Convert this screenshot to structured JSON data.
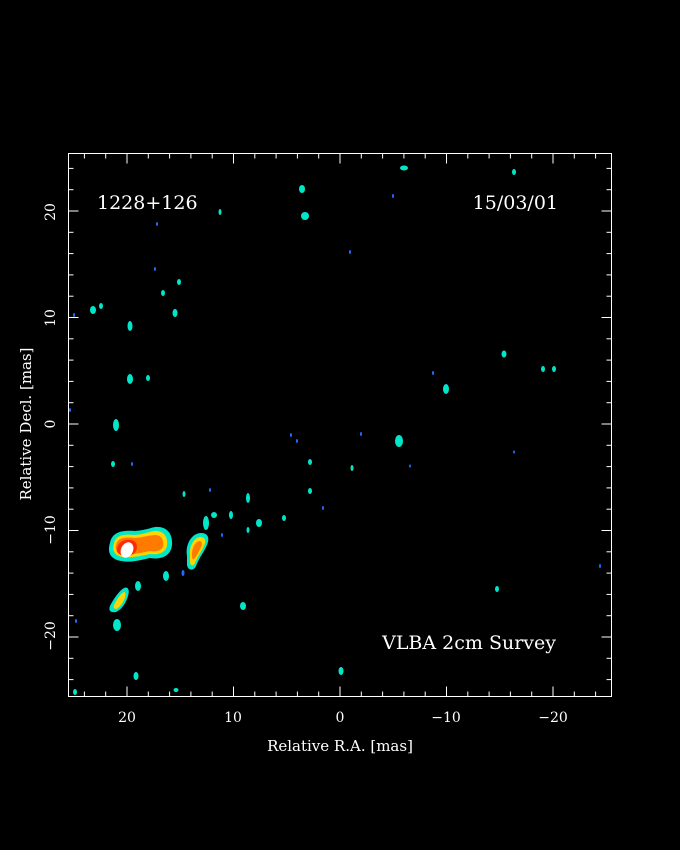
{
  "source_label": "1228+126",
  "date_label": "15/03/01",
  "survey_label": "VLBA 2cm Survey",
  "axes": {
    "xlabel": "Relative R.A. [mas]",
    "ylabel": "Relative Decl. [mas]",
    "x_range": [
      25.5,
      -25.5
    ],
    "y_range": [
      -25.5,
      25.5
    ],
    "x_ticks": [
      "20",
      "10",
      "0",
      "−10",
      "−20"
    ],
    "y_ticks": [
      "−20",
      "−10",
      "0",
      "10",
      "20"
    ]
  },
  "colors": {
    "background": "#000000",
    "frame": "#ffffff",
    "low_emission": "#00e6c8",
    "faint_emission": "#1e6cff",
    "mid_emission": "#ff7a00",
    "high_emission": "#ff2a00",
    "peak_emission": "#ffffff"
  }
}
